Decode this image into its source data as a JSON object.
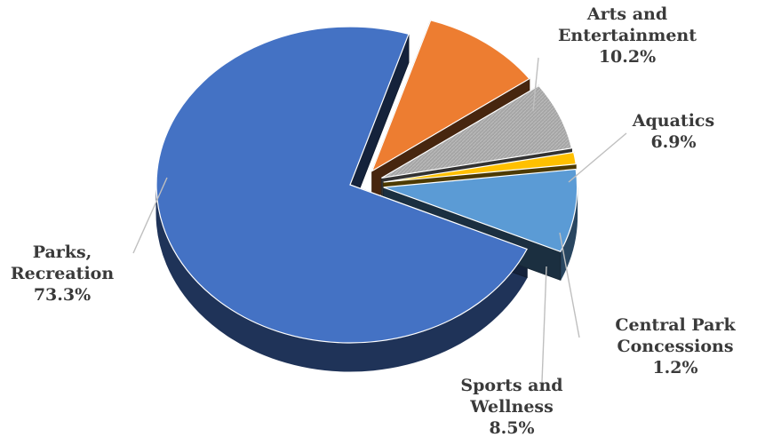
{
  "chart_data": {
    "type": "pie",
    "style": "3d-exploded",
    "title": "",
    "slices": [
      {
        "label": "Parks, Recreation",
        "label_lines": [
          "Parks,",
          "Recreation"
        ],
        "value": 73.3,
        "display": "73.3%",
        "color": "#4472C4"
      },
      {
        "label": "Arts and Entertainment",
        "label_lines": [
          "Arts and",
          "Entertainment"
        ],
        "value": 10.2,
        "display": "10.2%",
        "color": "#ED7D31"
      },
      {
        "label": "Aquatics",
        "label_lines": [
          "Aquatics"
        ],
        "value": 6.9,
        "display": "6.9%",
        "color": "#A5A5A5"
      },
      {
        "label": "Central Park Concessions",
        "label_lines": [
          "Central Park",
          "Concessions"
        ],
        "value": 1.2,
        "display": "1.2%",
        "color": "#FFC000"
      },
      {
        "label": "Sports and Wellness",
        "label_lines": [
          "Sports and",
          "Wellness"
        ],
        "value": 8.5,
        "display": "8.5%",
        "color": "#5B9BD5"
      }
    ]
  }
}
